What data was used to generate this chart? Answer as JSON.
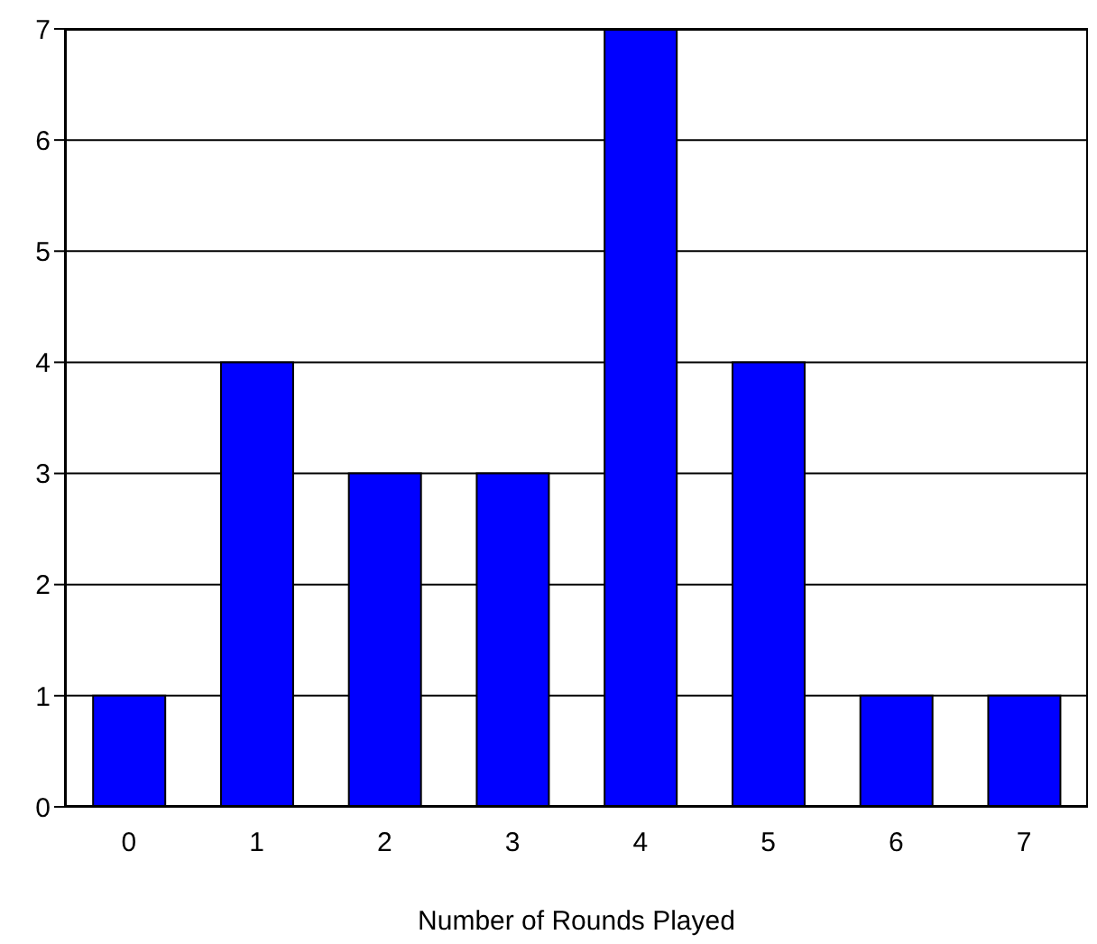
{
  "chart_data": {
    "type": "bar",
    "xlabel": "Number of Rounds Played",
    "categories": [
      "0",
      "1",
      "2",
      "3",
      "4",
      "5",
      "6",
      "7"
    ],
    "values": [
      1,
      4,
      3,
      3,
      7,
      4,
      1,
      1
    ],
    "color": "#0000ff",
    "ylim": [
      0,
      7
    ],
    "yticks": [
      0,
      1,
      2,
      3,
      4,
      5,
      6,
      7
    ],
    "grid": "y",
    "legend": false
  }
}
